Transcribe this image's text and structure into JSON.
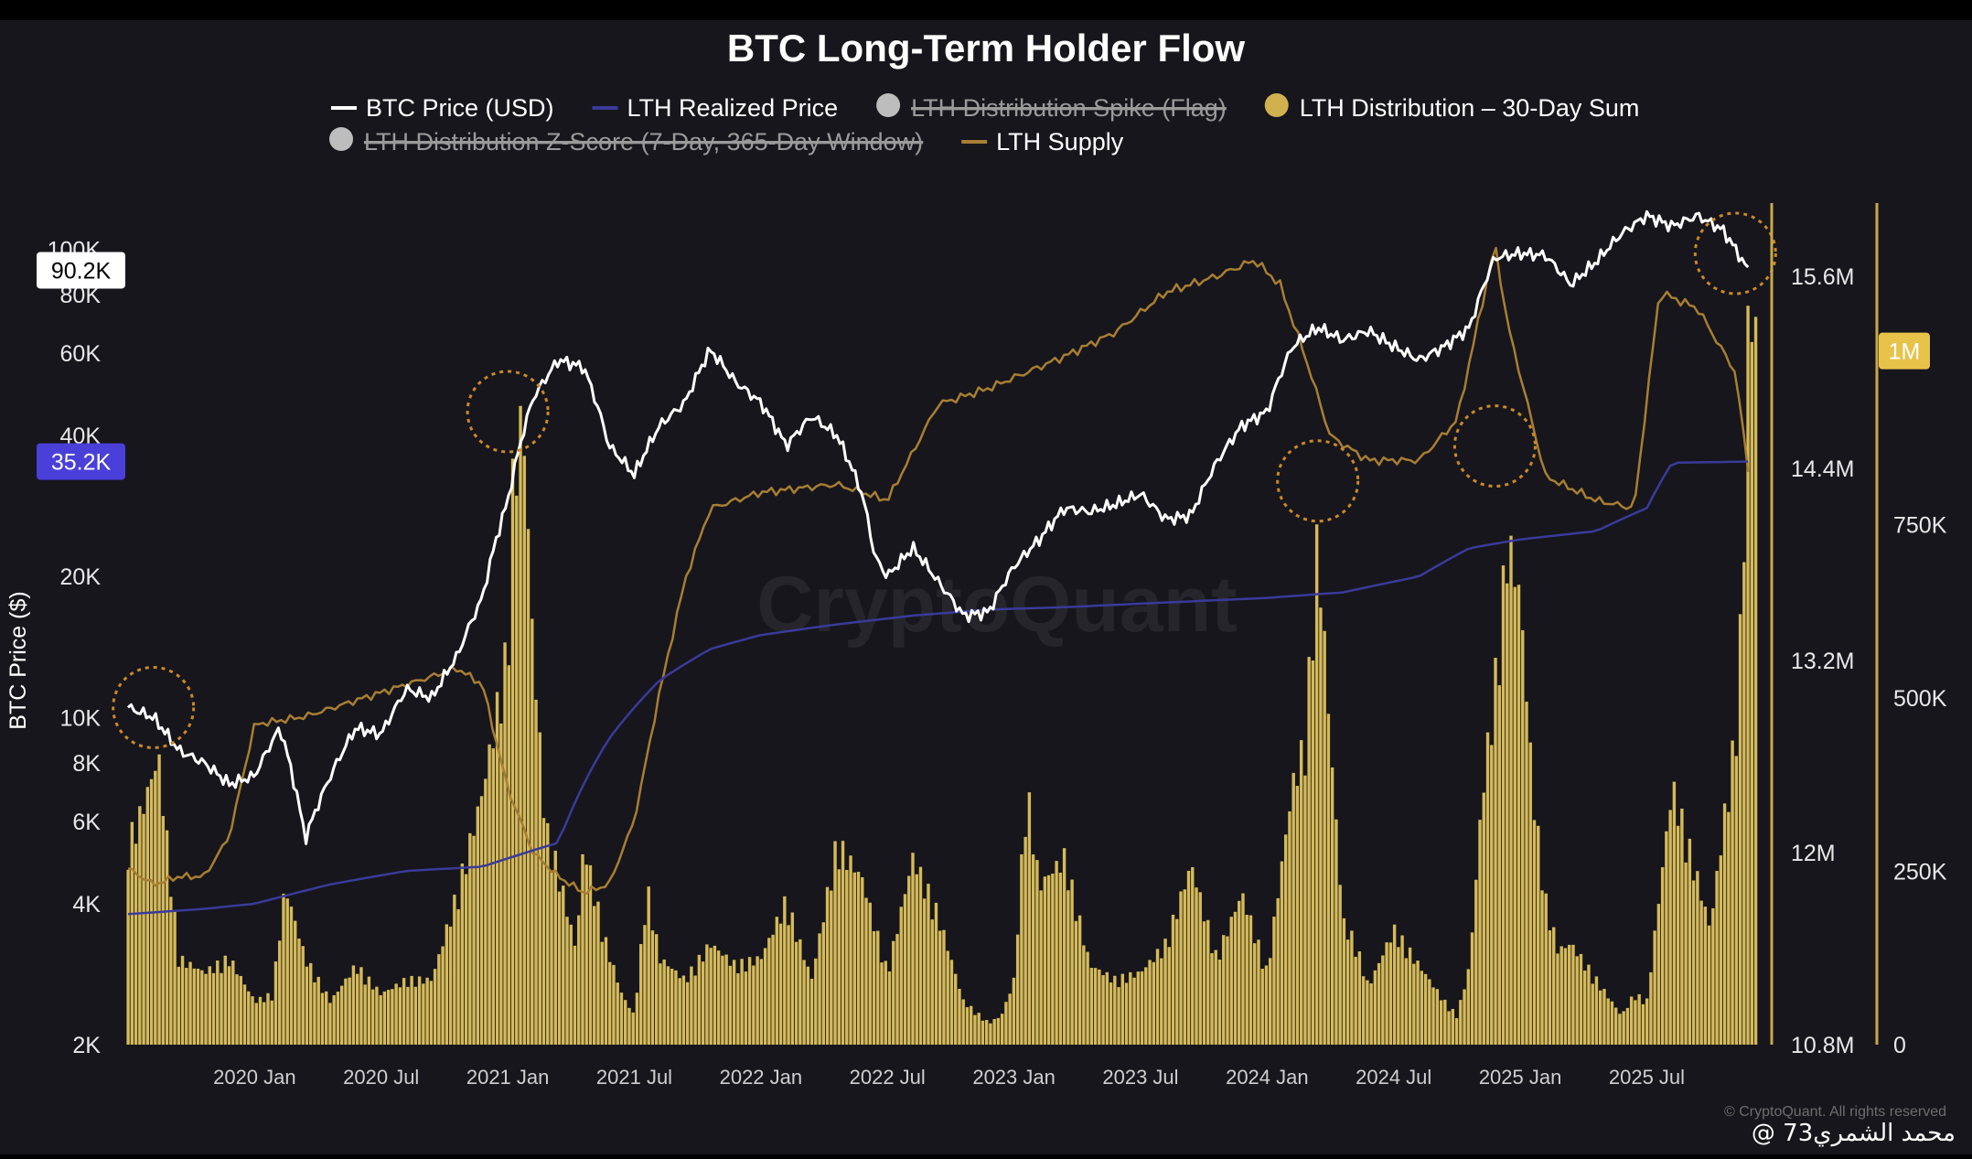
{
  "chart_data": {
    "type": "line+bar",
    "title": "BTC Long-Term Holder Flow",
    "legend": [
      {
        "key": "btc_price",
        "label": "BTC Price (USD)",
        "marker": "line",
        "color": "#ffffff",
        "enabled": true
      },
      {
        "key": "lth_realized",
        "label": "LTH Realized Price",
        "marker": "line",
        "color": "#3a3a9a",
        "enabled": true
      },
      {
        "key": "spike_flag",
        "label": "LTH Distribution Spike (Flag)",
        "marker": "dot",
        "color": "#bdbdbd",
        "enabled": false
      },
      {
        "key": "dist_30d",
        "label": "LTH Distribution – 30-Day Sum",
        "marker": "dot",
        "color": "#d1b050",
        "enabled": true
      },
      {
        "key": "z_score",
        "label": "LTH Distribution Z-Score (7-Day, 365-Day Window)",
        "marker": "dot",
        "color": "#bdbdbd",
        "enabled": false
      },
      {
        "key": "lth_supply",
        "label": "LTH Supply",
        "marker": "line",
        "color": "#a77e33",
        "enabled": true
      }
    ],
    "ylabel": "BTC Price ($)",
    "y_left": {
      "scale": "log",
      "range": [
        2000,
        120000
      ],
      "ticks": [
        {
          "v": 2000,
          "label": "2K"
        },
        {
          "v": 4000,
          "label": "4K"
        },
        {
          "v": 6000,
          "label": "6K"
        },
        {
          "v": 8000,
          "label": "8K"
        },
        {
          "v": 10000,
          "label": "10K"
        },
        {
          "v": 20000,
          "label": "20K"
        },
        {
          "v": 40000,
          "label": "40K"
        },
        {
          "v": 60000,
          "label": "60K"
        },
        {
          "v": 80000,
          "label": "80K"
        },
        {
          "v": 100000,
          "label": "100K"
        }
      ]
    },
    "y_supply": {
      "range": [
        10800000,
        16000000
      ],
      "ticks": [
        {
          "v": 10800000,
          "label": "10.8M"
        },
        {
          "v": 12000000,
          "label": "12M"
        },
        {
          "v": 13200000,
          "label": "13.2M"
        },
        {
          "v": 14400000,
          "label": "14.4M"
        },
        {
          "v": 15600000,
          "label": "15.6M"
        }
      ]
    },
    "y_dist": {
      "range": [
        0,
        1200000
      ],
      "ticks": [
        {
          "v": 0,
          "label": "0"
        },
        {
          "v": 250000,
          "label": "250K"
        },
        {
          "v": 500000,
          "label": "500K"
        },
        {
          "v": 750000,
          "label": "750K"
        }
      ]
    },
    "badges": [
      {
        "axis": "left",
        "value": 90200,
        "label": "90.2K",
        "bg": "#ffffff",
        "fg": "#000000"
      },
      {
        "axis": "left",
        "value": 35200,
        "label": "35.2K",
        "bg": "#4a3fd8",
        "fg": "#ffffff"
      },
      {
        "axis": "dist",
        "value": 1000000,
        "label": "1M",
        "bg": "#e8c34a",
        "fg": "#ffffff"
      }
    ],
    "x_ticks": [
      "2020 Jan",
      "2020 Jul",
      "2021 Jan",
      "2021 Jul",
      "2022 Jan",
      "2022 Jul",
      "2023 Jan",
      "2023 Jul",
      "2024 Jan",
      "2024 Jul",
      "2025 Jan",
      "2025 Jul"
    ],
    "x_range": [
      2019.5,
      2025.95
    ],
    "btc_price": {
      "t": [
        2019.5,
        2019.6,
        2019.7,
        2019.8,
        2019.9,
        2020.0,
        2020.1,
        2020.2,
        2020.3,
        2020.4,
        2020.5,
        2020.6,
        2020.7,
        2020.8,
        2020.9,
        2021.0,
        2021.1,
        2021.2,
        2021.3,
        2021.4,
        2021.5,
        2021.6,
        2021.7,
        2021.8,
        2021.9,
        2022.0,
        2022.1,
        2022.2,
        2022.3,
        2022.4,
        2022.45,
        2022.5,
        2022.6,
        2022.7,
        2022.8,
        2022.9,
        2023.0,
        2023.1,
        2023.2,
        2023.3,
        2023.4,
        2023.5,
        2023.6,
        2023.7,
        2023.8,
        2023.9,
        2024.0,
        2024.1,
        2024.2,
        2024.3,
        2024.4,
        2024.5,
        2024.6,
        2024.7,
        2024.8,
        2024.9,
        2025.0,
        2025.1,
        2025.2,
        2025.3,
        2025.4,
        2025.5,
        2025.6,
        2025.7,
        2025.8,
        2025.9
      ],
      "v": [
        10500,
        10000,
        8500,
        8000,
        7200,
        7500,
        9500,
        5500,
        7500,
        9500,
        9200,
        11500,
        11000,
        13500,
        18000,
        29000,
        48000,
        58000,
        56000,
        38000,
        33000,
        42000,
        47000,
        61000,
        52000,
        47000,
        38000,
        44000,
        40000,
        30000,
        22000,
        20000,
        23000,
        19500,
        16500,
        16800,
        21000,
        24000,
        28000,
        27500,
        28500,
        30000,
        26500,
        27000,
        35000,
        42000,
        45000,
        62000,
        68000,
        64000,
        67000,
        62000,
        58000,
        62000,
        68000,
        96000,
        98000,
        97000,
        84000,
        94000,
        108000,
        118000,
        112000,
        118000,
        110000,
        90200
      ]
    },
    "lth_realized": {
      "t": [
        2019.5,
        2019.8,
        2020.0,
        2020.3,
        2020.6,
        2020.9,
        2021.0,
        2021.2,
        2021.4,
        2021.6,
        2021.8,
        2022.0,
        2022.3,
        2022.6,
        2022.9,
        2023.2,
        2023.6,
        2024.0,
        2024.3,
        2024.6,
        2024.8,
        2025.0,
        2025.3,
        2025.5,
        2025.6,
        2025.9
      ],
      "v": [
        3800,
        3900,
        4000,
        4400,
        4700,
        4800,
        5000,
        5400,
        9000,
        12000,
        14000,
        15000,
        15800,
        16500,
        17000,
        17200,
        17600,
        18000,
        18500,
        20000,
        23000,
        24000,
        25000,
        28000,
        35000,
        35200
      ]
    },
    "lth_supply": {
      "t": [
        2019.5,
        2019.6,
        2019.7,
        2019.8,
        2019.9,
        2020.0,
        2020.2,
        2020.4,
        2020.6,
        2020.8,
        2020.9,
        2021.0,
        2021.1,
        2021.2,
        2021.3,
        2021.4,
        2021.5,
        2021.6,
        2021.7,
        2021.8,
        2022.0,
        2022.3,
        2022.5,
        2022.7,
        2022.9,
        2023.2,
        2023.4,
        2023.6,
        2023.8,
        2023.95,
        2024.05,
        2024.15,
        2024.25,
        2024.4,
        2024.6,
        2024.75,
        2024.9,
        2024.95,
        2025.1,
        2025.3,
        2025.45,
        2025.55,
        2025.7,
        2025.85,
        2025.9
      ],
      "v": [
        11900,
        11800,
        11850,
        11850,
        12100,
        12800,
        12850,
        12950,
        13050,
        13150,
        13050,
        12400,
        12000,
        11850,
        11750,
        11800,
        12200,
        13000,
        13700,
        14150,
        14250,
        14300,
        14200,
        14800,
        14900,
        15100,
        15250,
        15500,
        15600,
        15700,
        15550,
        15100,
        14600,
        14450,
        14450,
        14700,
        15800,
        15300,
        14350,
        14200,
        14150,
        15500,
        15400,
        15000,
        14400
      ]
    },
    "dist_30d": {
      "t": [
        2019.5,
        2019.55,
        2019.62,
        2019.7,
        2019.8,
        2019.9,
        2020.0,
        2020.07,
        2020.12,
        2020.2,
        2020.3,
        2020.4,
        2020.5,
        2020.6,
        2020.7,
        2020.8,
        2020.9,
        2021.0,
        2021.02,
        2021.06,
        2021.1,
        2021.15,
        2021.2,
        2021.27,
        2021.3,
        2021.38,
        2021.45,
        2021.5,
        2021.55,
        2021.6,
        2021.7,
        2021.8,
        2021.9,
        2022.0,
        2022.1,
        2022.2,
        2022.3,
        2022.4,
        2022.5,
        2022.6,
        2022.7,
        2022.8,
        2022.9,
        2022.95,
        2023.0,
        2023.05,
        2023.1,
        2023.2,
        2023.3,
        2023.4,
        2023.5,
        2023.6,
        2023.7,
        2023.8,
        2023.9,
        2024.0,
        2024.1,
        2024.15,
        2024.2,
        2024.25,
        2024.3,
        2024.35,
        2024.4,
        2024.5,
        2024.6,
        2024.7,
        2024.75,
        2024.8,
        2024.85,
        2024.9,
        2024.95,
        2025.0,
        2025.05,
        2025.1,
        2025.15,
        2025.2,
        2025.3,
        2025.4,
        2025.45,
        2025.5,
        2025.6,
        2025.7,
        2025.75,
        2025.8,
        2025.85,
        2025.88,
        2025.9,
        2025.93
      ],
      "v": [
        280000,
        320000,
        400000,
        120000,
        100000,
        120000,
        60000,
        70000,
        220000,
        120000,
        60000,
        110000,
        70000,
        90000,
        90000,
        210000,
        350000,
        550000,
        780000,
        880000,
        550000,
        300000,
        240000,
        130000,
        280000,
        150000,
        70000,
        40000,
        220000,
        120000,
        90000,
        140000,
        110000,
        120000,
        200000,
        90000,
        280000,
        230000,
        100000,
        260000,
        180000,
        60000,
        30000,
        40000,
        90000,
        360000,
        220000,
        260000,
        110000,
        90000,
        100000,
        140000,
        250000,
        120000,
        210000,
        100000,
        360000,
        420000,
        710000,
        420000,
        170000,
        140000,
        80000,
        160000,
        110000,
        60000,
        40000,
        110000,
        350000,
        500000,
        700000,
        620000,
        350000,
        200000,
        130000,
        140000,
        90000,
        40000,
        70000,
        60000,
        360000,
        230000,
        160000,
        300000,
        430000,
        650000,
        1000000,
        1000000
      ]
    },
    "annotations": [
      {
        "type": "circle",
        "t": 2019.6,
        "value": 10500
      },
      {
        "type": "circle",
        "t": 2021.0,
        "value": 45000
      },
      {
        "type": "circle",
        "t": 2024.2,
        "value": 32000
      },
      {
        "type": "circle",
        "t": 2024.9,
        "value": 38000
      },
      {
        "type": "circle",
        "t": 2025.85,
        "value": 98000
      }
    ]
  },
  "watermark": "CryptoQuant",
  "credit": "© CryptoQuant. All rights reserved",
  "signature": "@ محمد الشمري73"
}
